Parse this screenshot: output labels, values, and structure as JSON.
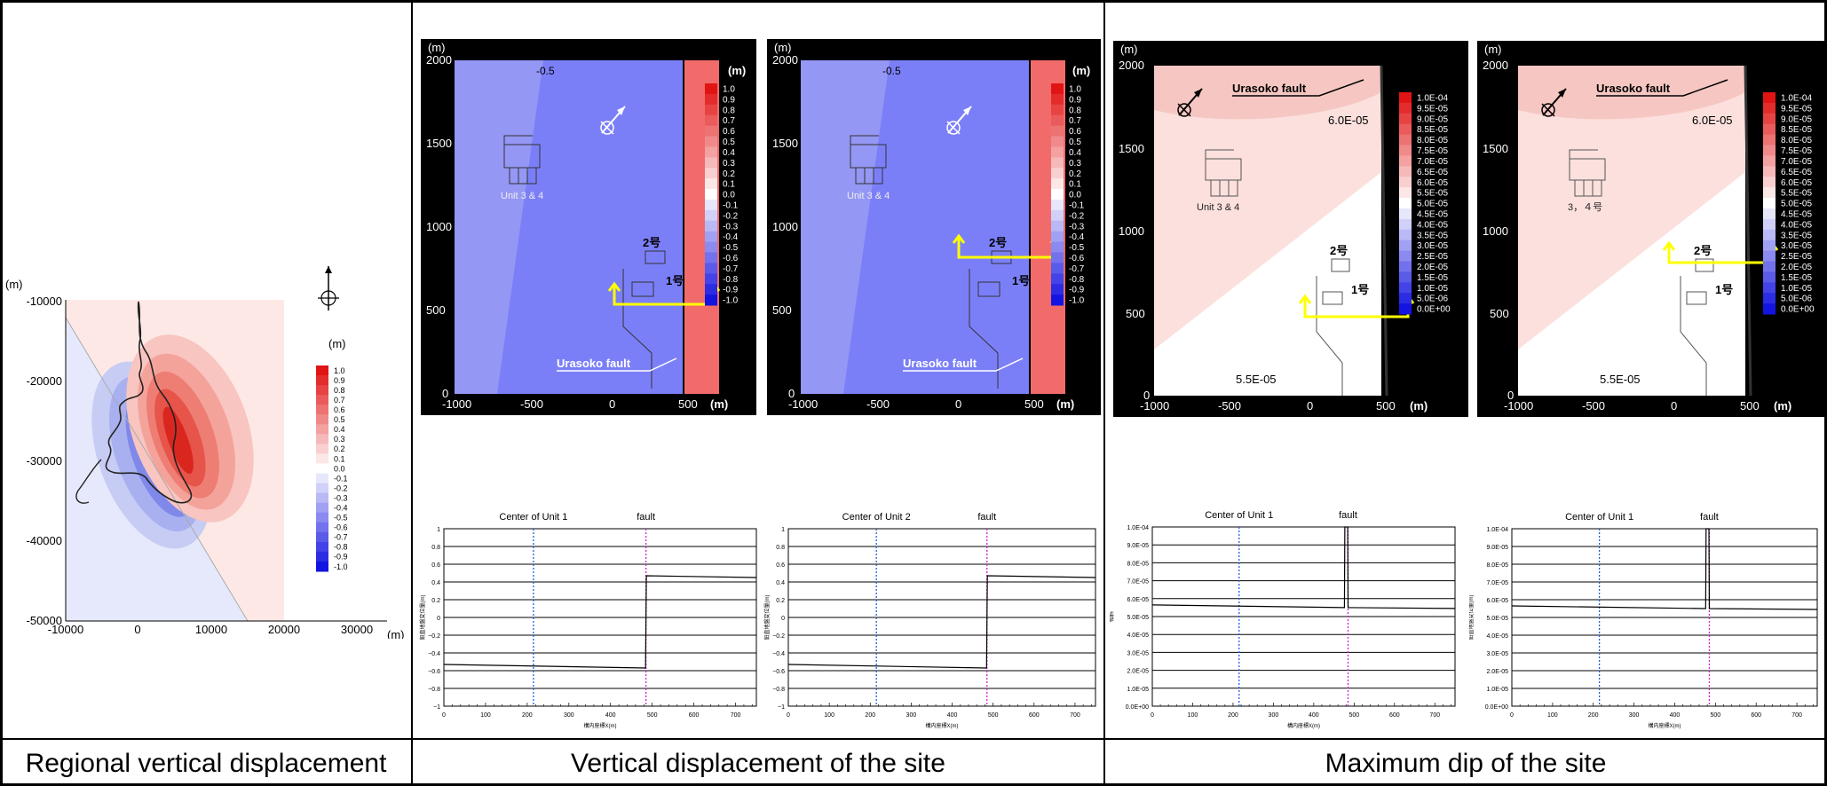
{
  "captions": {
    "regional": "Regional vertical displacement",
    "site_vertical": "Vertical displacement of the site",
    "site_dip": "Maximum dip of the site"
  },
  "regional_map": {
    "unit_label": "(m)",
    "x_ticks": [
      "-10000",
      "0",
      "10000",
      "20000",
      "30000"
    ],
    "y_ticks": [
      "-10000",
      "-20000",
      "-30000",
      "-40000",
      "-50000"
    ],
    "colorbar_unit": "(m)",
    "colorbar_labels": [
      "1.0",
      "0.9",
      "0.8",
      "0.7",
      "0.6",
      "0.5",
      "0.4",
      "0.3",
      "0.2",
      "0.1",
      "0.0",
      "-0.1",
      "-0.2",
      "-0.3",
      "-0.4",
      "-0.5",
      "-0.6",
      "-0.7",
      "-0.8",
      "-0.9",
      "-1.0"
    ]
  },
  "site_maps": [
    {
      "contour_label": "-0.5",
      "building_label": "Unit 3 & 4",
      "unit1_label": "1号",
      "unit2_label": "2号",
      "fault_label": "Urasoko fault",
      "unit_label": "(m)",
      "colorbar_unit": "(m)"
    },
    {
      "contour_label": "-0.5",
      "building_label": "Unit 3 & 4",
      "unit1_label": "1号",
      "unit2_label": "2号",
      "fault_label": "Urasoko fault",
      "unit_label": "(m)",
      "colorbar_unit": "(m)"
    },
    {
      "contour_label_upper": "6.0E-05",
      "contour_label_lower": "5.5E-05",
      "building_label": "Unit 3 & 4",
      "unit1_label": "1号",
      "unit2_label": "2号",
      "fault_label": "Urasoko fault",
      "unit_label": "(m)"
    },
    {
      "contour_label_upper": "6.0E-05",
      "contour_label_lower": "5.5E-05",
      "building_label": "3，４号",
      "unit1_label": "1号",
      "unit2_label": "2号",
      "fault_label": "Urasoko fault",
      "unit_label": "(m)"
    }
  ],
  "site_map_axes": {
    "x_ticks": [
      "-1000",
      "-500",
      "0",
      "500"
    ],
    "y_ticks": [
      "2000",
      "1500",
      "1000",
      "500",
      "0"
    ],
    "disp_colorbar": [
      "1.0",
      "0.9",
      "0.8",
      "0.7",
      "0.6",
      "0.5",
      "0.4",
      "0.3",
      "0.2",
      "0.1",
      "0.0",
      "-0.1",
      "-0.2",
      "-0.3",
      "-0.4",
      "-0.5",
      "-0.6",
      "-0.7",
      "-0.8",
      "-0.9",
      "-1.0"
    ],
    "dip_colorbar": [
      "1.0E-04",
      "9.5E-05",
      "9.0E-05",
      "8.5E-05",
      "8.0E-05",
      "7.5E-05",
      "7.0E-05",
      "6.5E-05",
      "6.0E-05",
      "5.5E-05",
      "5.0E-05",
      "4.5E-05",
      "4.0E-05",
      "3.5E-05",
      "3.0E-05",
      "2.5E-05",
      "2.0E-05",
      "1.5E-05",
      "1.0E-05",
      "5.0E-06",
      "0.0E+00"
    ]
  },
  "chart_data": [
    {
      "type": "line",
      "title": "",
      "annotations": [
        "Center of Unit 1",
        "fault"
      ],
      "xlim": [
        0,
        750
      ],
      "ylim": [
        -1,
        1
      ],
      "x_ticks": [
        0,
        100,
        200,
        300,
        400,
        500,
        600,
        700
      ],
      "y_ticks": [
        1,
        0.8,
        0.6,
        0.4,
        0.2,
        0,
        -0.2,
        -0.4,
        -0.6,
        -0.8,
        -1
      ],
      "y_tick_labels": [
        "1",
        "0.8",
        "0.6",
        "0.4",
        "0.2",
        "0",
        "−0.2",
        "−0.4",
        "−0.6",
        "−0.8",
        "−1"
      ],
      "xlabel": "構内座標X(m)",
      "ylabel": "鉛直地盤変位量(m)",
      "center_x": 215,
      "fault_x": 485,
      "series": [
        {
          "x": [
            0,
            484,
            486,
            750
          ],
          "y": [
            -0.53,
            -0.57,
            0.47,
            0.45
          ]
        }
      ]
    },
    {
      "type": "line",
      "title": "",
      "annotations": [
        "Center of Unit 2",
        "fault"
      ],
      "xlim": [
        0,
        750
      ],
      "ylim": [
        -1,
        1
      ],
      "x_ticks": [
        0,
        100,
        200,
        300,
        400,
        500,
        600,
        700
      ],
      "y_ticks": [
        1,
        0.8,
        0.6,
        0.4,
        0.2,
        0,
        -0.2,
        -0.4,
        -0.6,
        -0.8,
        -1
      ],
      "y_tick_labels": [
        "1",
        "0.8",
        "0.6",
        "0.4",
        "0.2",
        "0",
        "−0.2",
        "−0.4",
        "−0.6",
        "−0.8",
        "−1"
      ],
      "xlabel": "構内座標X(m)",
      "ylabel": "鉛直地盤変位量(m)",
      "center_x": 215,
      "fault_x": 485,
      "series": [
        {
          "x": [
            0,
            484,
            486,
            750
          ],
          "y": [
            -0.53,
            -0.57,
            0.47,
            0.45
          ]
        }
      ]
    },
    {
      "type": "line",
      "title": "",
      "annotations": [
        "Center of Unit 1",
        "fault"
      ],
      "xlim": [
        0,
        750
      ],
      "ylim": [
        0,
        0.0001
      ],
      "x_ticks": [
        0,
        100,
        200,
        300,
        400,
        500,
        600,
        700
      ],
      "y_ticks": [
        0.0001,
        9e-05,
        8e-05,
        7e-05,
        6e-05,
        5e-05,
        4e-05,
        3e-05,
        2e-05,
        1e-05,
        0
      ],
      "y_tick_labels": [
        "1.0E-04",
        "9.0E-05",
        "8.0E-05",
        "7.0E-05",
        "6.0E-05",
        "5.0E-05",
        "4.0E-05",
        "3.0E-05",
        "2.0E-05",
        "1.0E-05",
        "0.0E+00"
      ],
      "xlabel": "構内座標X(m)",
      "ylabel": "傾斜",
      "center_x": 215,
      "fault_x": 485,
      "series": [
        {
          "x": [
            0,
            476,
            477,
            484,
            485,
            750
          ],
          "y": [
            5.65e-05,
            5.5e-05,
            0.0001,
            0.0001,
            5.5e-05,
            5.45e-05
          ]
        }
      ]
    },
    {
      "type": "line",
      "title": "",
      "annotations": [
        "Center of Unit 1",
        "fault"
      ],
      "xlim": [
        0,
        750
      ],
      "ylim": [
        0,
        0.0001
      ],
      "x_ticks": [
        0,
        100,
        200,
        300,
        400,
        500,
        600,
        700
      ],
      "y_ticks": [
        0.0001,
        9e-05,
        8e-05,
        7e-05,
        6e-05,
        5e-05,
        4e-05,
        3e-05,
        2e-05,
        1e-05,
        0
      ],
      "y_tick_labels": [
        "1.0E-04",
        "9.0E-05",
        "8.0E-05",
        "7.0E-05",
        "6.0E-05",
        "5.0E-05",
        "4.0E-05",
        "3.0E-05",
        "2.0E-05",
        "1.0E-05",
        "0.0E+00"
      ],
      "xlabel": "構内座標X(m)",
      "ylabel": "鉛直地盤変位量(m)",
      "center_x": 215,
      "fault_x": 485,
      "series": [
        {
          "x": [
            0,
            476,
            477,
            484,
            485,
            750
          ],
          "y": [
            5.65e-05,
            5.5e-05,
            0.0001,
            0.0001,
            5.5e-05,
            5.45e-05
          ]
        }
      ]
    }
  ]
}
